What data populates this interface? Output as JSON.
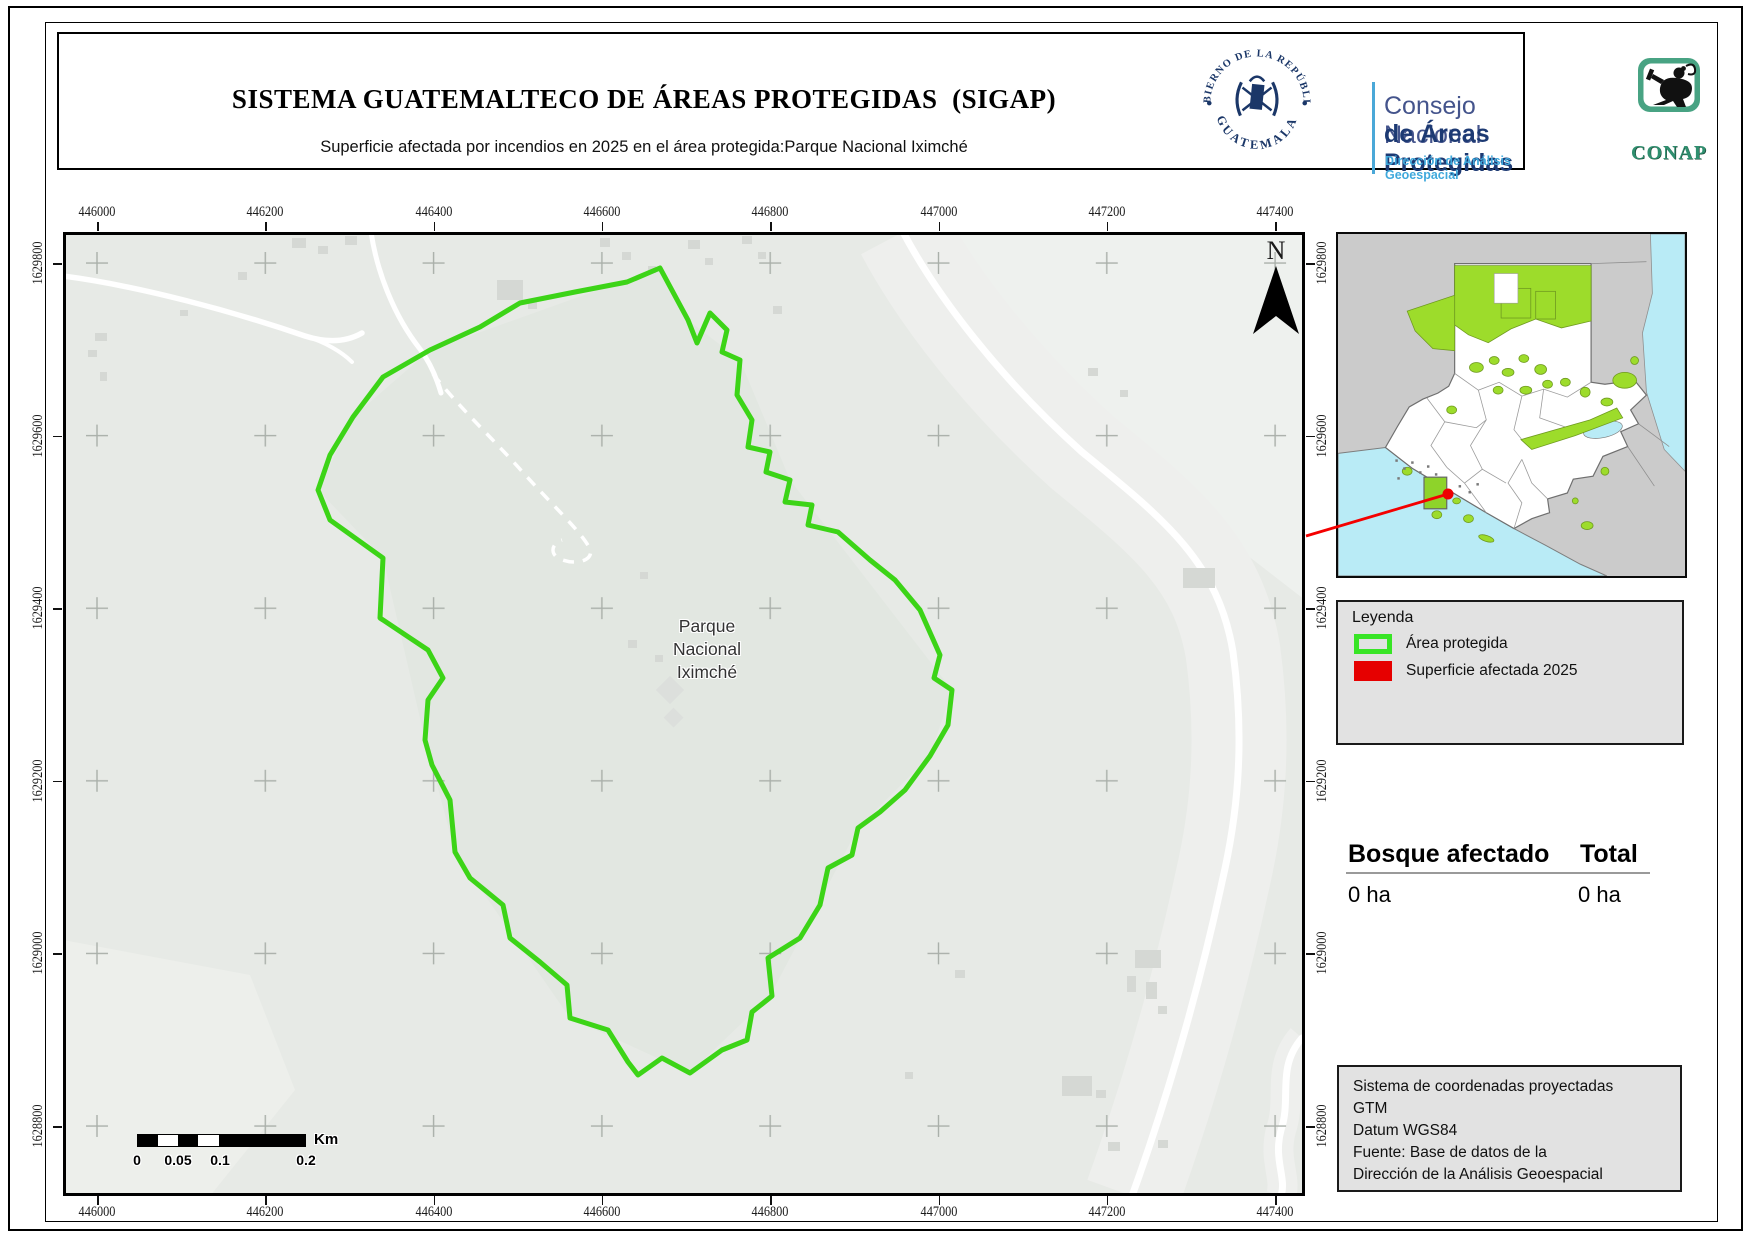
{
  "header": {
    "title": "SISTEMA GUATEMALTECO DE ÁREAS PROTEGIDAS  (SIGAP)",
    "subtitle": "Superficie afectada por incendios en 2025 en el área protegida:Parque Nacional Iximché",
    "gov_seal": {
      "arc_top": "GOBIERNO DE LA REPÚBLICA",
      "arc_bottom": "GUATEMALA"
    },
    "org": {
      "line1": "Consejo Nacional",
      "line2": "de Áreas Protegidas",
      "line3": "Dirección de Análisis Geoespacial"
    },
    "conap_label": "CONAP"
  },
  "map": {
    "x_ticks": [
      "446000",
      "446200",
      "446400",
      "446600",
      "446800",
      "447000",
      "447200",
      "447400"
    ],
    "y_ticks": [
      "1629800",
      "1629600",
      "1629400",
      "1629200",
      "1629000",
      "1628800"
    ],
    "park_label": [
      "Parque",
      "Nacional",
      "Iximché"
    ],
    "north_label": "N",
    "scalebar": {
      "tick_labels": [
        "0",
        "0.05",
        "0.1",
        "0.2"
      ],
      "unit": "Km"
    }
  },
  "legend": {
    "title": "Leyenda",
    "items": [
      {
        "label": "Área protegida",
        "swatch": "outline",
        "color": "#38e526"
      },
      {
        "label": "Superficie afectada 2025",
        "swatch": "fill",
        "color": "#e60000"
      }
    ]
  },
  "stats": {
    "header_left": "Bosque afectado",
    "header_right": "Total",
    "value_left": "0 ha",
    "value_right": "0 ha"
  },
  "credits": {
    "lines": [
      "Sistema de coordenadas proyectadas",
      "GTM",
      "Datum WGS84",
      "Fuente: Base de datos de la",
      "Dirección de la Análisis Geoespacial"
    ]
  },
  "colors": {
    "protected_boundary": "#3cd417",
    "affected": "#e60000",
    "inset_protected": "#9ddc2b",
    "water": "#b9ebf6"
  }
}
